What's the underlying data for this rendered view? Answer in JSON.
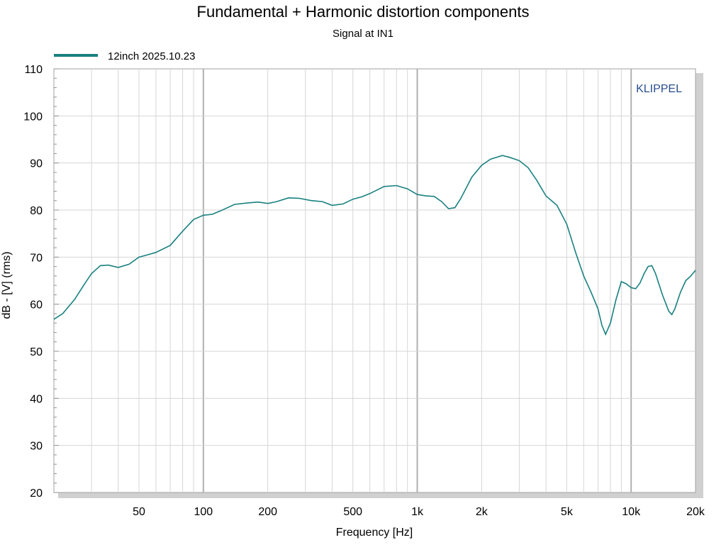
{
  "chart_data": {
    "type": "line",
    "title": "Fundamental + Harmonic distortion components",
    "subtitle": "Signal at IN1",
    "xlabel": "Frequency [Hz]",
    "ylabel": "dB - [V]  (rms)",
    "watermark": "KLIPPEL",
    "x_scale": "log",
    "xlim": [
      20,
      20000
    ],
    "ylim": [
      20,
      110
    ],
    "grid": true,
    "legend_position": "top-left",
    "x_ticks": [
      {
        "value": 50,
        "label": "50"
      },
      {
        "value": 100,
        "label": "100"
      },
      {
        "value": 200,
        "label": "200"
      },
      {
        "value": 500,
        "label": "500"
      },
      {
        "value": 1000,
        "label": "1k"
      },
      {
        "value": 2000,
        "label": "2k"
      },
      {
        "value": 5000,
        "label": "5k"
      },
      {
        "value": 10000,
        "label": "10k"
      },
      {
        "value": 20000,
        "label": "20k"
      }
    ],
    "y_ticks": [
      {
        "value": 20,
        "label": "20"
      },
      {
        "value": 30,
        "label": "30"
      },
      {
        "value": 40,
        "label": "40"
      },
      {
        "value": 50,
        "label": "50"
      },
      {
        "value": 60,
        "label": "60"
      },
      {
        "value": 70,
        "label": "70"
      },
      {
        "value": 80,
        "label": "80"
      },
      {
        "value": 90,
        "label": "90"
      },
      {
        "value": 100,
        "label": "100"
      },
      {
        "value": 110,
        "label": "110"
      }
    ],
    "series": [
      {
        "name": "12inch 2025.10.23",
        "color": "#1a8080",
        "x": [
          20,
          22,
          25,
          28,
          30,
          33,
          36,
          40,
          45,
          50,
          55,
          60,
          70,
          80,
          90,
          100,
          110,
          120,
          140,
          160,
          180,
          200,
          220,
          250,
          280,
          320,
          360,
          400,
          450,
          500,
          550,
          600,
          700,
          800,
          900,
          1000,
          1100,
          1200,
          1300,
          1400,
          1500,
          1600,
          1800,
          2000,
          2200,
          2500,
          2700,
          3000,
          3300,
          3600,
          4000,
          4500,
          5000,
          5500,
          6000,
          6500,
          7000,
          7300,
          7600,
          8000,
          8500,
          9000,
          9500,
          10000,
          10500,
          11000,
          11500,
          12000,
          12500,
          13000,
          14000,
          15000,
          15500,
          16000,
          17000,
          18000,
          19000,
          20000
        ],
        "y": [
          56.8,
          58,
          61,
          64.5,
          66.5,
          68.2,
          68.3,
          67.8,
          68.5,
          70,
          70.5,
          71,
          72.5,
          75.5,
          78,
          78.9,
          79.1,
          79.8,
          81.2,
          81.5,
          81.7,
          81.4,
          81.8,
          82.6,
          82.5,
          82,
          81.8,
          81,
          81.3,
          82.3,
          82.8,
          83.5,
          85,
          85.2,
          84.5,
          83.3,
          83,
          82.9,
          81.8,
          80.3,
          80.5,
          82.5,
          87,
          89.5,
          90.8,
          91.6,
          91.2,
          90.5,
          89,
          86.5,
          83,
          81,
          77,
          71,
          66,
          62.5,
          59,
          55.5,
          53.6,
          56,
          61,
          64.8,
          64.3,
          63.5,
          63.3,
          64.5,
          66.5,
          68,
          68.2,
          66.5,
          62,
          58.5,
          57.8,
          59,
          62.5,
          65,
          66,
          67.2
        ]
      }
    ]
  }
}
